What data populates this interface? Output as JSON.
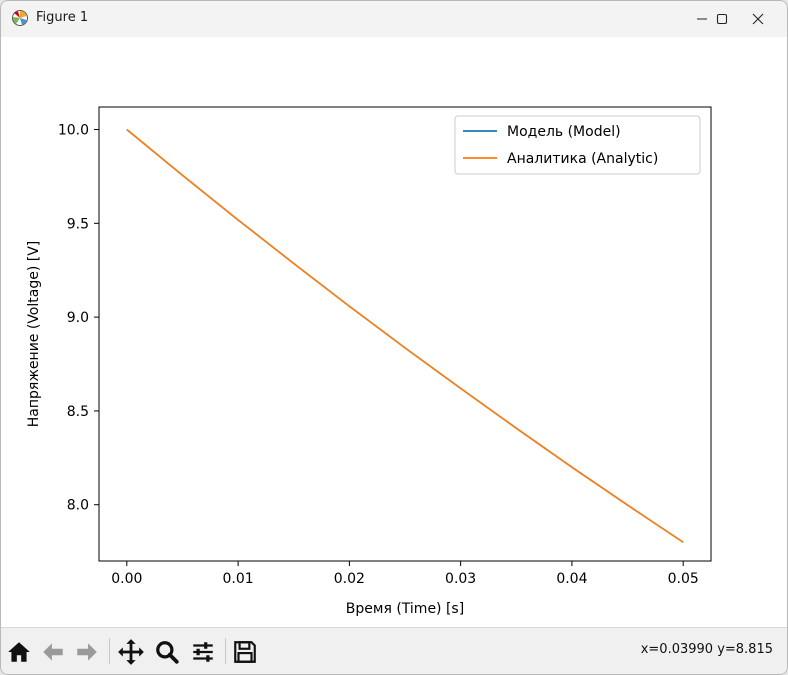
{
  "window": {
    "title": "Figure 1"
  },
  "toolbar": {
    "buttons": [
      {
        "name": "home",
        "icon": "home-icon"
      },
      {
        "name": "back",
        "icon": "arrow-left-icon"
      },
      {
        "name": "forward",
        "icon": "arrow-right-icon"
      },
      {
        "name": "pan",
        "icon": "move-icon"
      },
      {
        "name": "zoom",
        "icon": "magnifier-icon"
      },
      {
        "name": "configure-subplots",
        "icon": "sliders-icon"
      },
      {
        "name": "save",
        "icon": "floppy-disk-icon"
      }
    ],
    "coords": "x=0.03990 y=8.815"
  },
  "chart_data": {
    "type": "line",
    "title": "",
    "xlabel": "Время (Time) [s]",
    "ylabel": "Напряжение (Voltage) [V]",
    "xlim": [
      -0.0025,
      0.0525
    ],
    "ylim": [
      7.7,
      10.12
    ],
    "x_ticks": [
      "0.00",
      "0.01",
      "0.02",
      "0.03",
      "0.04",
      "0.05"
    ],
    "y_ticks": [
      "8.0",
      "8.5",
      "9.0",
      "9.5",
      "10.0"
    ],
    "grid": false,
    "legend_position": "top-right",
    "series": [
      {
        "name": " Модель (Model)",
        "color": "#1f77b4",
        "x": [
          0.0,
          0.005,
          0.01,
          0.015,
          0.02,
          0.025,
          0.03,
          0.035,
          0.04,
          0.045,
          0.05
        ],
        "y": [
          10.0,
          9.756,
          9.518,
          9.286,
          9.058,
          8.836,
          8.62,
          8.408,
          8.2,
          7.998,
          7.8
        ]
      },
      {
        "name": "Аналитика (Analytic)",
        "color": "#ff7f0e",
        "x": [
          0.0,
          0.005,
          0.01,
          0.015,
          0.02,
          0.025,
          0.03,
          0.035,
          0.04,
          0.045,
          0.05
        ],
        "y": [
          10.0,
          9.756,
          9.518,
          9.286,
          9.058,
          8.836,
          8.62,
          8.408,
          8.2,
          7.998,
          7.8
        ]
      }
    ]
  }
}
